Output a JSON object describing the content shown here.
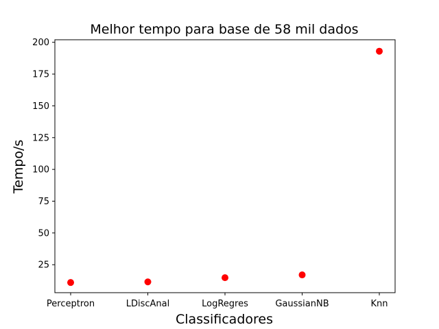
{
  "chart_data": {
    "type": "scatter",
    "title": "Melhor tempo para base de 58 mil dados",
    "xlabel": "Classificadores",
    "ylabel": "Tempo/s",
    "categories": [
      "Perceptron",
      "LDiscAnal",
      "LogRegres",
      "GaussianNB",
      "Knn"
    ],
    "series": [
      {
        "values": [
          11,
          11.5,
          14.8,
          17,
          193
        ]
      }
    ],
    "yticks": [
      25,
      50,
      75,
      100,
      125,
      150,
      175,
      200
    ],
    "ylim": [
      3,
      202
    ],
    "grid": false,
    "marker_color": "#ff0000"
  }
}
